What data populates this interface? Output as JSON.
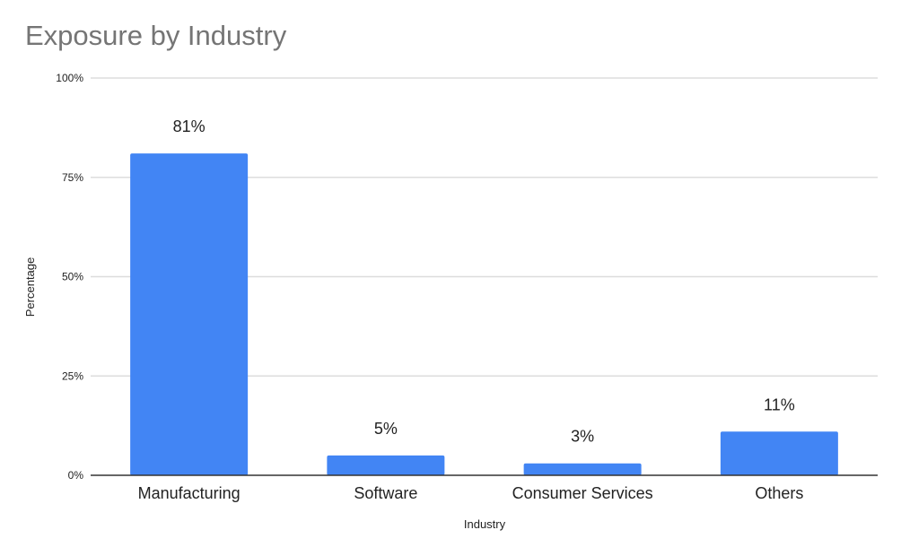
{
  "chart_data": {
    "type": "bar",
    "title": "Exposure by Industry",
    "xlabel": "Industry",
    "ylabel": "Percentage",
    "categories": [
      "Manufacturing",
      "Software",
      "Consumer Services",
      "Others"
    ],
    "values": [
      81,
      5,
      3,
      11
    ],
    "data_labels": [
      "81%",
      "5%",
      "3%",
      "11%"
    ],
    "ylim": [
      0,
      100
    ],
    "yticks": [
      0,
      25,
      50,
      75,
      100
    ],
    "ytick_labels": [
      "0%",
      "25%",
      "50%",
      "75%",
      "100%"
    ],
    "grid": true,
    "legend": "none",
    "colors": {
      "bar": "#4285f4",
      "grid": "#dddddd",
      "axis": "#333333",
      "title": "#757575",
      "text": "#222222"
    }
  }
}
